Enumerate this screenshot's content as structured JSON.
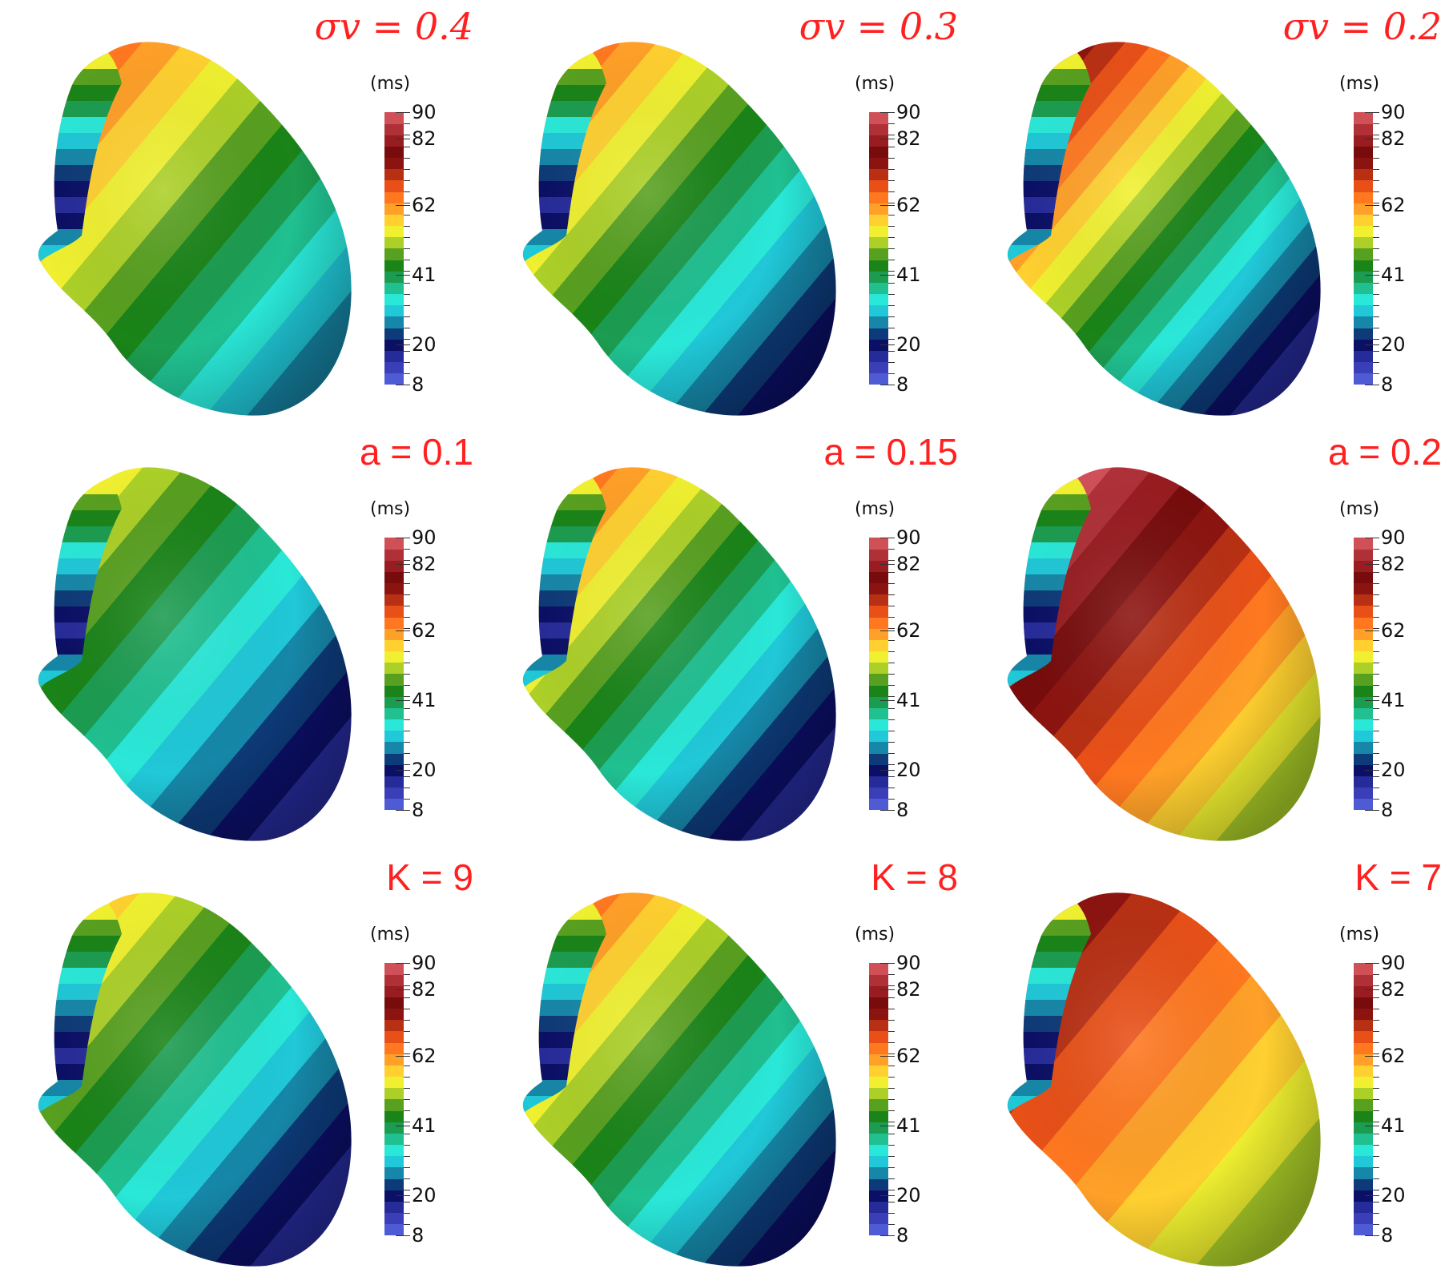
{
  "colorbar": {
    "unit": "(ms)",
    "range_ms": [
      8,
      90
    ],
    "tick_labels": [
      "90",
      "82",
      "62",
      "41",
      "20",
      "8"
    ],
    "tick_values": [
      90,
      82,
      62,
      41,
      20,
      8
    ],
    "colors": [
      "#4f5bd5",
      "#3a3fb8",
      "#262b9a",
      "#0b0f66",
      "#0d3a78",
      "#1687a8",
      "#20c8d8",
      "#2ae8d8",
      "#20c090",
      "#1c9c50",
      "#1a8418",
      "#58a020",
      "#acd028",
      "#f0f030",
      "#ffd030",
      "#ffa028",
      "#ff7820",
      "#e85018",
      "#b83014",
      "#8c1410",
      "#780c0c",
      "#981c20",
      "#b03038",
      "#d05058"
    ]
  },
  "panels": [
    {
      "title": "σv = 0.4",
      "style": "math",
      "activation_ms": [
        28,
        63
      ]
    },
    {
      "title": "σv = 0.3",
      "style": "math",
      "activation_ms": [
        21,
        66
      ]
    },
    {
      "title": "σv = 0.2",
      "style": "math",
      "activation_ms": [
        18,
        76
      ]
    },
    {
      "title": "a = 0.1",
      "style": "plain",
      "activation_ms": [
        18,
        53
      ]
    },
    {
      "title": "a = 0.15",
      "style": "plain",
      "activation_ms": [
        18,
        66
      ]
    },
    {
      "title": "a = 0.2",
      "style": "plain",
      "activation_ms": [
        49,
        88
      ]
    },
    {
      "title": "K = 9",
      "style": "plain",
      "activation_ms": [
        18,
        56
      ]
    },
    {
      "title": "K = 8",
      "style": "plain",
      "activation_ms": [
        21,
        66
      ]
    },
    {
      "title": "K = 7",
      "style": "plain",
      "activation_ms": [
        49,
        73
      ]
    }
  ]
}
